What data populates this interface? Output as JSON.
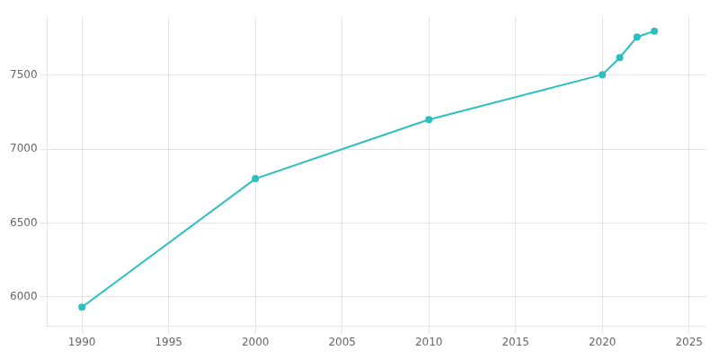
{
  "chart_data": {
    "type": "line",
    "x": [
      1990,
      2000,
      2010,
      2020,
      2021,
      2022,
      2023
    ],
    "values": [
      5930,
      6800,
      7200,
      7505,
      7620,
      7760,
      7800
    ],
    "color": "#2bbfbf",
    "marker": "circle",
    "xlim": [
      1988,
      2026
    ],
    "xticks": [
      1990,
      1995,
      2000,
      2005,
      2010,
      2015,
      2020,
      2025
    ],
    "ylim": [
      5800,
      7900
    ],
    "yticks": [
      6000,
      6500,
      7000,
      7500
    ],
    "grid": true
  }
}
